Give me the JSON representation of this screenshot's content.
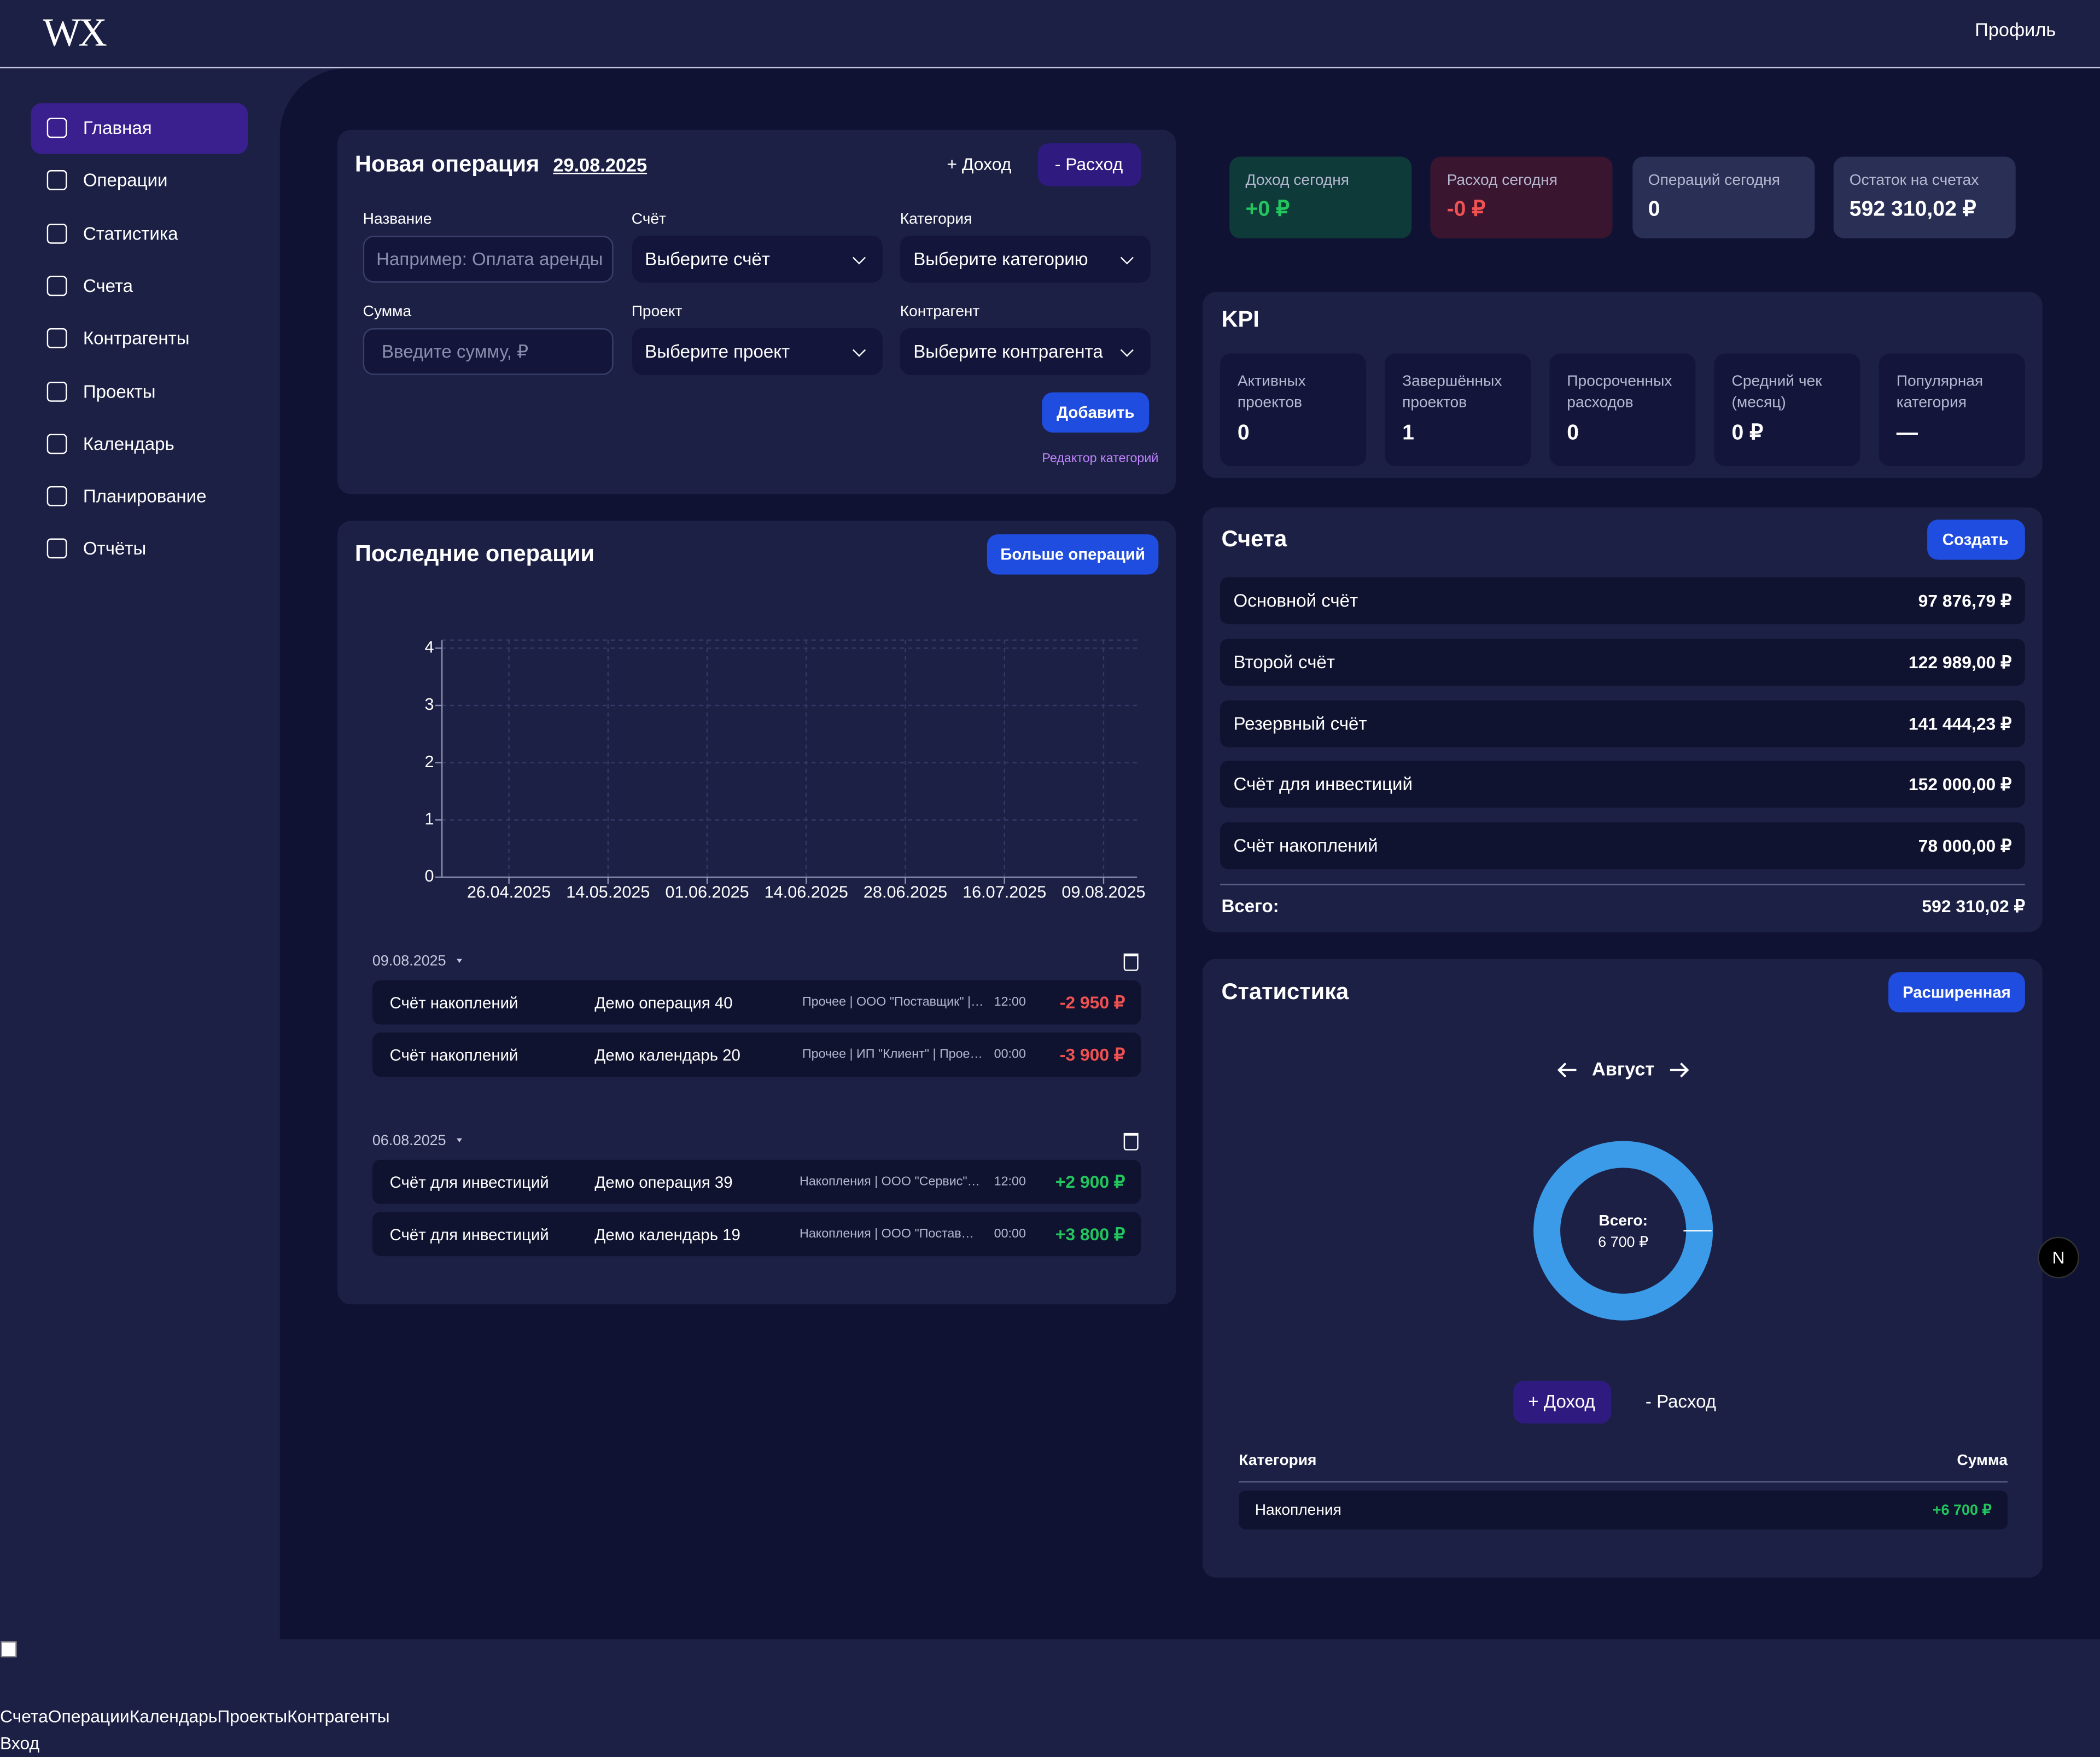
{
  "header": {
    "logo": "WX",
    "profile": "Профиль"
  },
  "sidebar": [
    "Главная",
    "Операции",
    "Статистика",
    "Счета",
    "Контрагенты",
    "Проекты",
    "Календарь",
    "Планирование",
    "Отчёты"
  ],
  "new_operation": {
    "title": "Новая операция",
    "date": "29.08.2025",
    "income_button": "+ Доход",
    "expense_button": "- Расход",
    "fields": [
      {
        "label": "Название",
        "placeholder": "Например: Оплата аренды"
      },
      {
        "label": "Счёт",
        "placeholder": "Выберите счёт"
      },
      {
        "label": "Категория",
        "placeholder": "Выберите категорию"
      },
      {
        "label": "Сумма",
        "placeholder": "Введите сумму, ₽"
      },
      {
        "label": "Проект",
        "placeholder": "Выберите проект"
      },
      {
        "label": "Контрагент",
        "placeholder": "Выберите контрагента"
      }
    ],
    "add_button": "Добавить",
    "editor_link": "Редактор категорий"
  },
  "recent": {
    "title": "Последние операции",
    "more_button": "Больше операций",
    "chart": {
      "type": "line",
      "categories": [
        "26.04.2025",
        "14.05.2025",
        "01.06.2025",
        "14.06.2025",
        "28.06.2025",
        "16.07.2025",
        "09.08.2025"
      ],
      "ylim": [
        0,
        4
      ],
      "yticks": [
        0,
        1,
        2,
        3,
        4
      ],
      "grid": true
    },
    "groups": [
      {
        "date": "09.08.2025",
        "items": [
          {
            "account": "Счёт накоплений",
            "name": "Демо операция 40",
            "details": "Прочее | ООО \"Поставщик\" |…",
            "time": "12:00",
            "amount": "-2 950 ₽"
          },
          {
            "account": "Счёт накоплений",
            "name": "Демо календарь 20",
            "details": "Прочее | ИП \"Клиент\" | Прое…",
            "time": "00:00",
            "amount": "-3 900 ₽"
          }
        ]
      },
      {
        "date": "06.08.2025",
        "items": [
          {
            "account": "Счёт для инвестиций",
            "name": "Демо операция 39",
            "details": "Накопления | ООО \"Сервис\"…",
            "time": "12:00",
            "amount": "+2 900 ₽"
          },
          {
            "account": "Счёт для инвестиций",
            "name": "Демо календарь 19",
            "details": "Накопления | ООО \"Постав…",
            "time": "00:00",
            "amount": "+3 800 ₽"
          }
        ]
      }
    ]
  },
  "today": [
    {
      "label": "Доход сегодня",
      "value": "+0 ₽"
    },
    {
      "label": "Расход сегодня",
      "value": "-0 ₽"
    },
    {
      "label": "Операций сегодня",
      "value": "0"
    },
    {
      "label": "Остаток на счетах",
      "value": "592 310,02 ₽"
    }
  ],
  "kpi": {
    "title": "KPI",
    "items": [
      {
        "label": "Активных проектов",
        "value": "0"
      },
      {
        "label": "Завершённых проектов",
        "value": "1"
      },
      {
        "label": "Просроченных расходов",
        "value": "0"
      },
      {
        "label": "Средний чек (месяц)",
        "value": "0 ₽"
      },
      {
        "label": "Популярная категория",
        "value": "—"
      }
    ]
  },
  "accounts": {
    "title": "Счета",
    "create_button": "Создать",
    "items": [
      {
        "name": "Основной счёт",
        "balance": "97 876,79 ₽"
      },
      {
        "name": "Второй счёт",
        "balance": "122 989,00 ₽"
      },
      {
        "name": "Резервный счёт",
        "balance": "141 444,23 ₽"
      },
      {
        "name": "Счёт для инвестиций",
        "balance": "152 000,00 ₽"
      },
      {
        "name": "Счёт накоплений",
        "balance": "78 000,00 ₽"
      }
    ],
    "total_label": "Всего:",
    "total": "592 310,02 ₽"
  },
  "stats": {
    "title": "Статистика",
    "extended_button": "Расширенная",
    "month": "Август",
    "donut": {
      "total_label": "Всего:",
      "total": "6 700 ₽",
      "values": [
        6700
      ],
      "color": "#3b9be8"
    },
    "income_tab": "+ Доход",
    "expense_tab": "- Расход",
    "table": {
      "headers": [
        "Категория",
        "Сумма"
      ],
      "rows": [
        [
          "Накопления",
          "+6 700 ₽"
        ]
      ]
    }
  },
  "dev_badge": "N",
  "footer": {
    "links": [
      "Счета",
      "Операции",
      "Календарь",
      "Проекты",
      "Контрагенты"
    ],
    "login": "Вход"
  }
}
